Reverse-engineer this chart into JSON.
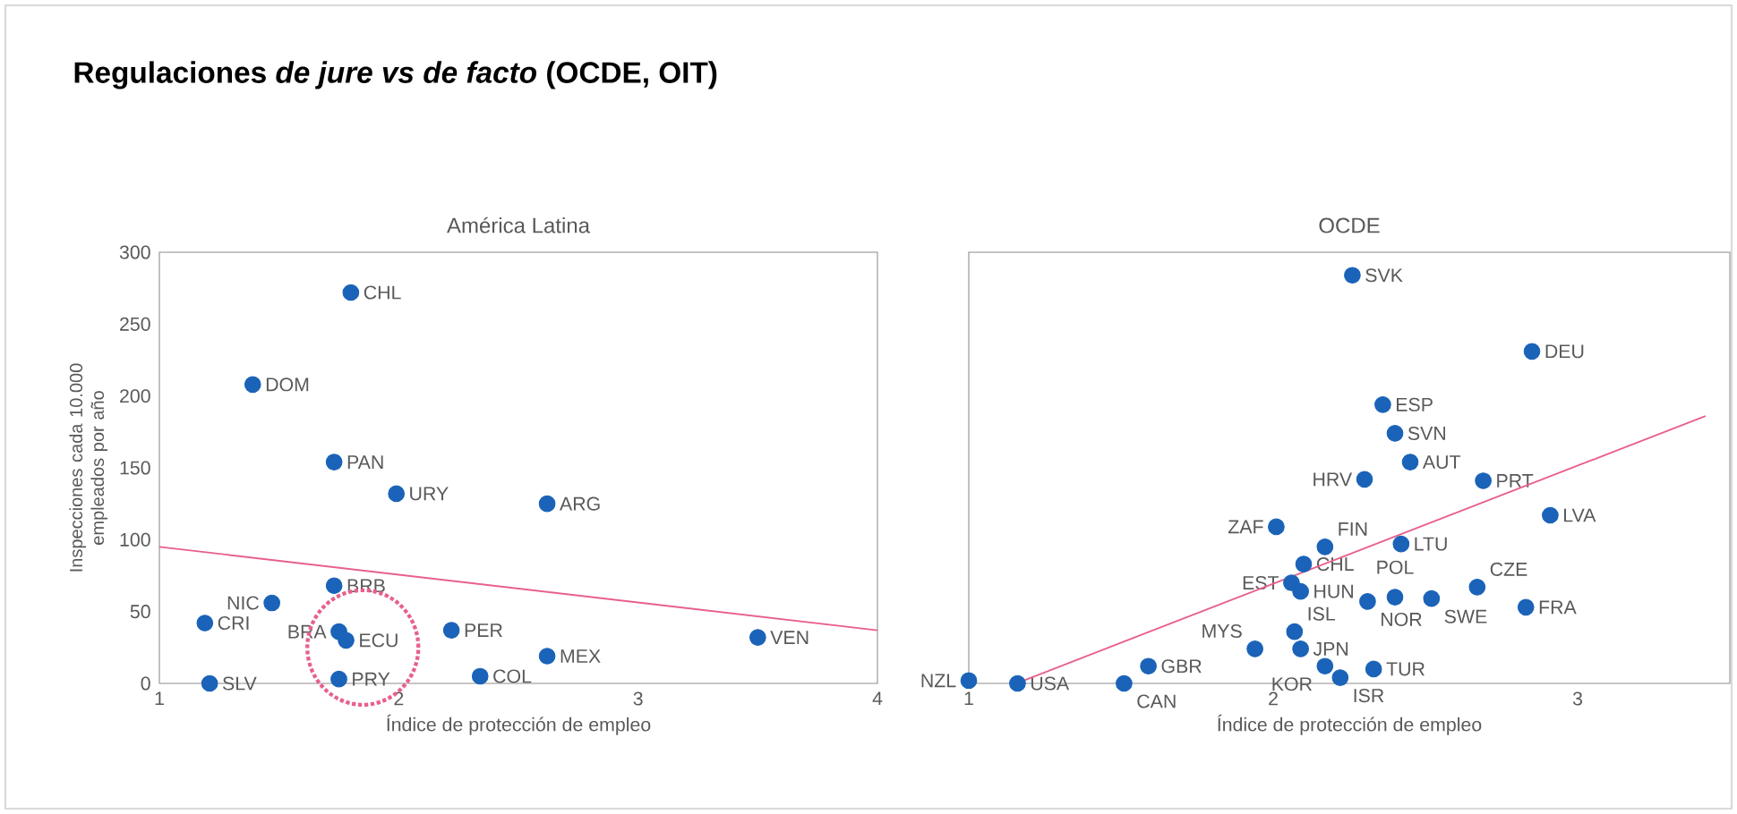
{
  "chart_data": [
    {
      "type": "scatter",
      "title": "Regulaciones *de jure vs de facto* (OCDE, OIT)",
      "subtitle": "América Latina",
      "xlabel": "Índice de protección de empleo",
      "ylabel": "Inspecciones cada 10.000 empleados por año",
      "xlim": [
        1,
        4
      ],
      "ylim": [
        0,
        300
      ],
      "xticks": [
        1,
        2,
        3,
        4
      ],
      "yticks": [
        0,
        50,
        100,
        150,
        200,
        250,
        300
      ],
      "series": [
        {
          "type": "scatter",
          "marker": "circle",
          "color": "#1a63b8",
          "x": [
            1.8,
            1.39,
            1.73,
            1.99,
            2.62,
            1.73,
            1.47,
            1.19,
            1.75,
            1.78,
            2.22,
            2.62,
            3.5,
            1.21,
            1.75,
            2.34
          ],
          "values": [
            272,
            208,
            154,
            132,
            125,
            68,
            56,
            42,
            36,
            30,
            37,
            19,
            32,
            0,
            3,
            5
          ],
          "value_labels": [
            "CHL",
            "DOM",
            "PAN",
            "URY",
            "ARG",
            "BRB",
            "NIC",
            "CRI",
            "BRA",
            "ECU",
            "PER",
            "MEX",
            "VEN",
            "SLV",
            "PRY",
            "COL"
          ]
        },
        {
          "type": "line",
          "color": "#e8608a",
          "x": [
            1,
            4
          ],
          "values": [
            95,
            37
          ]
        }
      ]
    },
    {
      "type": "scatter",
      "subtitle": "OCDE",
      "xlabel": "Índice de protección de empleo",
      "xlim": [
        1,
        3.5
      ],
      "ylim": [
        0,
        300
      ],
      "xticks": [
        1,
        2,
        3
      ],
      "tick_labels": "x",
      "series": [
        {
          "type": "scatter",
          "marker": "circle",
          "color": "#1a63b8",
          "x": [
            1.0,
            1.16,
            1.51,
            1.59,
            1.94,
            2.07,
            2.09,
            2.17,
            2.22,
            2.33,
            2.06,
            2.09,
            2.1,
            2.01,
            2.17,
            2.42,
            2.31,
            2.4,
            2.52,
            2.67,
            2.83,
            2.3,
            2.45,
            2.4,
            2.36,
            2.69,
            2.91,
            2.85,
            2.26
          ],
          "values": [
            2,
            0,
            0,
            12,
            24,
            36,
            24,
            12,
            4,
            10,
            70,
            64,
            83,
            109,
            95,
            97,
            57,
            60,
            59,
            67,
            53,
            142,
            154,
            174,
            194,
            141,
            117,
            231,
            284
          ],
          "value_labels": [
            "NZL",
            "USA",
            "CAN",
            "GBR",
            "MYS",
            "ISL",
            "JPN",
            "KOR",
            "ISR",
            "TUR",
            "EST",
            "HUN",
            "CHL",
            "ZAF",
            "FIN",
            "LTU",
            "NOR",
            "POL",
            "SWE",
            "CZE",
            "FRA",
            "HRV",
            "AUT",
            "SVN",
            "ESP",
            "PRT",
            "LVA",
            "DEU",
            "SVK"
          ]
        },
        {
          "type": "line",
          "color": "#e8608a",
          "x": [
            1.18,
            3.42
          ],
          "values": [
            2,
            186
          ]
        }
      ]
    }
  ]
}
